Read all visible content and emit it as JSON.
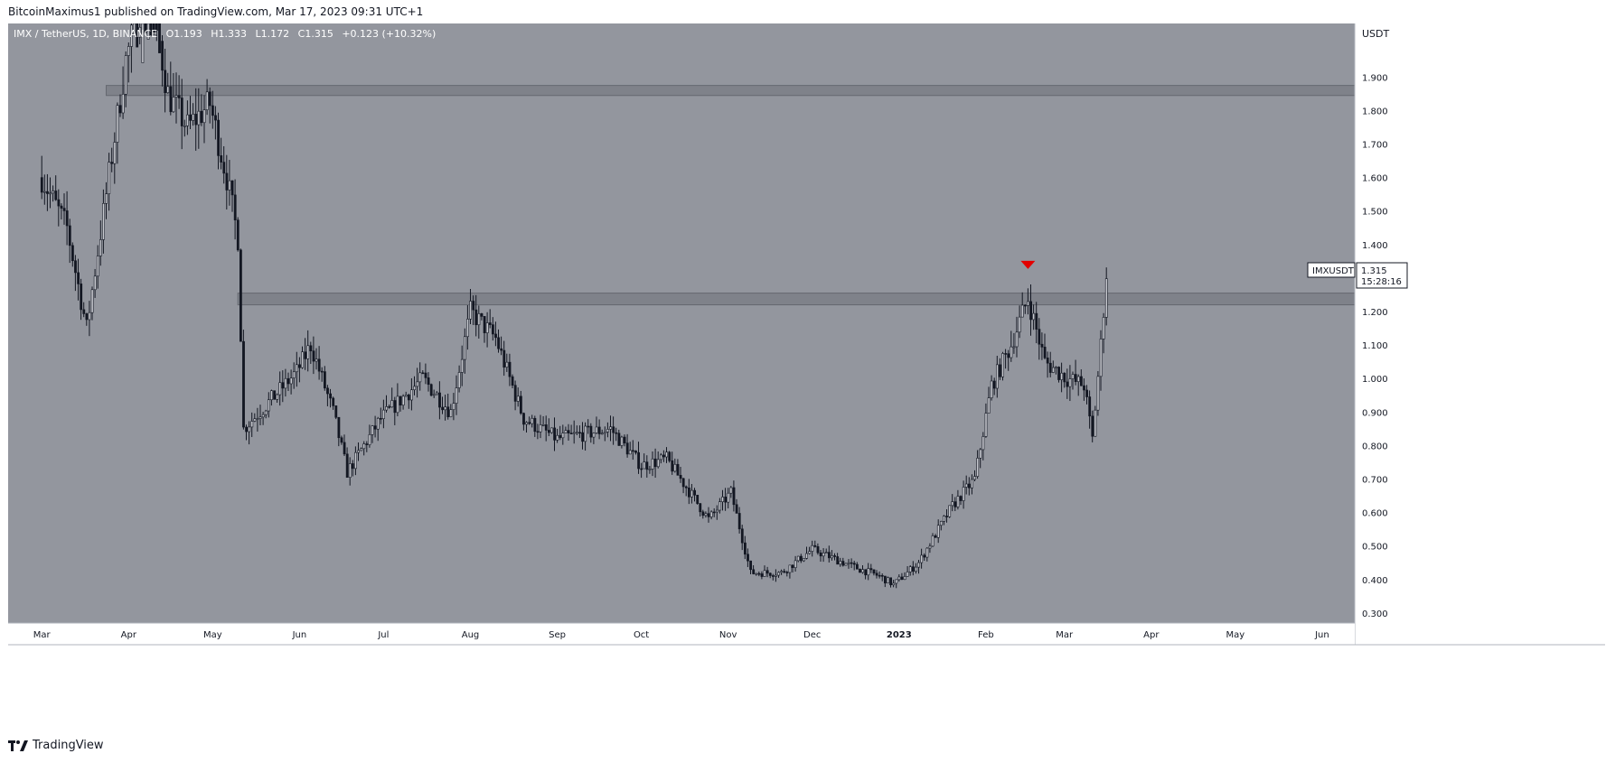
{
  "header": {
    "published": "BitcoinMaximus1 published on TradingView.com, Mar 17, 2023 09:31 UTC+1"
  },
  "footer": {
    "brand": "TradingView"
  },
  "colors": {
    "background": "#93969e",
    "candle": "#131722",
    "zone_fill": "#7c7f87",
    "zone_stroke": "#5d6068",
    "marker": "#e30000",
    "axis_bg": "#ffffff"
  },
  "chart_data": {
    "type": "candlestick",
    "symbol_line": {
      "symbol": "IMX / TetherUS, 1D, BINANCE",
      "open_label": "O",
      "open": "1.193",
      "high_label": "H",
      "high": "1.333",
      "low_label": "L",
      "low": "1.172",
      "close_label": "C",
      "close": "1.315",
      "change": "+0.123 (+10.32%)"
    },
    "y_axis": {
      "currency": "USDT",
      "range": [
        0.27,
        2.06
      ],
      "ticks": [
        "1.900",
        "1.800",
        "1.700",
        "1.600",
        "1.500",
        "1.400",
        "1.200",
        "1.100",
        "1.000",
        "0.900",
        "0.800",
        "0.700",
        "0.600",
        "0.500",
        "0.400",
        "0.300"
      ]
    },
    "x_axis": {
      "labels": [
        "Mar",
        "Apr",
        "May",
        "Jun",
        "Jul",
        "Aug",
        "Sep",
        "Oct",
        "Nov",
        "Dec",
        "2023",
        "Feb",
        "Mar",
        "Apr",
        "May",
        "Jun"
      ]
    },
    "price_tag": {
      "symbol": "IMXUSDT",
      "price": "1.315",
      "countdown": "15:28:16"
    },
    "resistance_zones": [
      {
        "low": 1.845,
        "high": 1.875
      },
      {
        "low": 1.22,
        "high": 1.255
      }
    ],
    "marker": {
      "type": "down-arrow",
      "date": "2023-02-16",
      "price": 1.3
    },
    "close_path": [
      [
        "2022-03-01",
        1.6
      ],
      [
        "2022-03-10",
        1.45
      ],
      [
        "2022-03-17",
        1.15
      ],
      [
        "2022-03-24",
        1.55
      ],
      [
        "2022-03-31",
        1.95
      ],
      [
        "2022-04-08",
        2.2
      ],
      [
        "2022-04-15",
        1.85
      ],
      [
        "2022-04-22",
        1.75
      ],
      [
        "2022-04-30",
        1.82
      ],
      [
        "2022-05-06",
        1.6
      ],
      [
        "2022-05-10",
        1.42
      ],
      [
        "2022-05-12",
        0.85
      ],
      [
        "2022-05-20",
        0.92
      ],
      [
        "2022-05-31",
        1.02
      ],
      [
        "2022-06-05",
        1.1
      ],
      [
        "2022-06-13",
        0.9
      ],
      [
        "2022-06-18",
        0.72
      ],
      [
        "2022-06-30",
        0.88
      ],
      [
        "2022-07-15",
        1.0
      ],
      [
        "2022-07-25",
        0.9
      ],
      [
        "2022-08-01",
        1.2
      ],
      [
        "2022-08-10",
        1.12
      ],
      [
        "2022-08-20",
        0.88
      ],
      [
        "2022-09-01",
        0.82
      ],
      [
        "2022-09-20",
        0.85
      ],
      [
        "2022-10-01",
        0.74
      ],
      [
        "2022-10-10",
        0.76
      ],
      [
        "2022-10-25",
        0.58
      ],
      [
        "2022-11-02",
        0.66
      ],
      [
        "2022-11-09",
        0.42
      ],
      [
        "2022-11-20",
        0.42
      ],
      [
        "2022-12-01",
        0.49
      ],
      [
        "2022-12-15",
        0.44
      ],
      [
        "2022-12-25",
        0.41
      ],
      [
        "2022-12-30",
        0.385
      ],
      [
        "2023-01-08",
        0.45
      ],
      [
        "2023-01-20",
        0.62
      ],
      [
        "2023-01-28",
        0.7
      ],
      [
        "2023-02-03",
        0.98
      ],
      [
        "2023-02-10",
        1.1
      ],
      [
        "2023-02-16",
        1.24
      ],
      [
        "2023-02-22",
        1.05
      ],
      [
        "2023-03-02",
        1.0
      ],
      [
        "2023-03-08",
        0.98
      ],
      [
        "2023-03-11",
        0.82
      ],
      [
        "2023-03-14",
        1.1
      ],
      [
        "2023-03-16",
        1.315
      ]
    ]
  }
}
